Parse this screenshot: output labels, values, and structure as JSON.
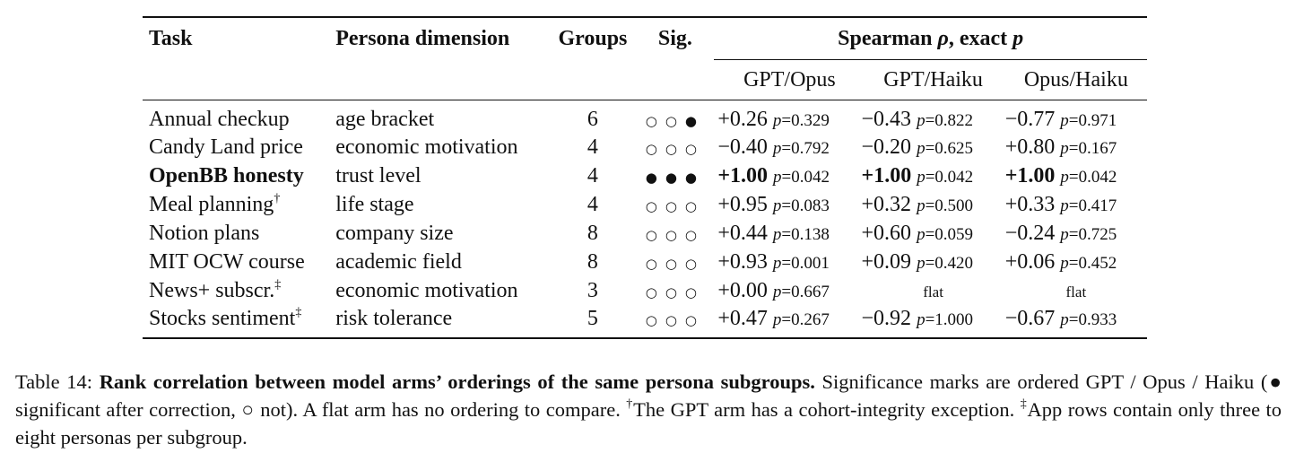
{
  "table": {
    "headers": {
      "task": "Task",
      "dimension": "Persona dimension",
      "groups": "Groups",
      "sig": "Sig.",
      "spearman": "Spearman ρ, exact p",
      "pairs": [
        "GPT/Opus",
        "GPT/Haiku",
        "Opus/Haiku"
      ]
    },
    "rows": [
      {
        "task": "Annual checkup",
        "mark": "",
        "dim": "age bracket",
        "groups": "6",
        "sig": "○○●",
        "bold": false,
        "cells": [
          {
            "rho": "+0.26",
            "p": "=0.329"
          },
          {
            "rho": "−0.43",
            "p": "=0.822"
          },
          {
            "rho": "−0.77",
            "p": "=0.971"
          }
        ]
      },
      {
        "task": "Candy Land price",
        "mark": "",
        "dim": "economic motivation",
        "groups": "4",
        "sig": "○○○",
        "bold": false,
        "cells": [
          {
            "rho": "−0.40",
            "p": "=0.792"
          },
          {
            "rho": "−0.20",
            "p": "=0.625"
          },
          {
            "rho": "+0.80",
            "p": "=0.167"
          }
        ]
      },
      {
        "task": "OpenBB honesty",
        "mark": "",
        "dim": "trust level",
        "groups": "4",
        "sig": "●●●",
        "bold": true,
        "cells": [
          {
            "rho": "+1.00",
            "p": "=0.042"
          },
          {
            "rho": "+1.00",
            "p": "=0.042"
          },
          {
            "rho": "+1.00",
            "p": "=0.042"
          }
        ]
      },
      {
        "task": "Meal planning",
        "mark": "†",
        "dim": "life stage",
        "groups": "4",
        "sig": "○○○",
        "bold": false,
        "cells": [
          {
            "rho": "+0.95",
            "p": "=0.083"
          },
          {
            "rho": "+0.32",
            "p": "=0.500"
          },
          {
            "rho": "+0.33",
            "p": "=0.417"
          }
        ]
      },
      {
        "task": "Notion plans",
        "mark": "",
        "dim": "company size",
        "groups": "8",
        "sig": "○○○",
        "bold": false,
        "cells": [
          {
            "rho": "+0.44",
            "p": "=0.138"
          },
          {
            "rho": "+0.60",
            "p": "=0.059"
          },
          {
            "rho": "−0.24",
            "p": "=0.725"
          }
        ]
      },
      {
        "task": "MIT OCW course",
        "mark": "",
        "dim": "academic field",
        "groups": "8",
        "sig": "○○○",
        "bold": false,
        "cells": [
          {
            "rho": "+0.93",
            "p": "=0.001"
          },
          {
            "rho": "+0.09",
            "p": "=0.420"
          },
          {
            "rho": "+0.06",
            "p": "=0.452"
          }
        ]
      },
      {
        "task": "News+ subscr.",
        "mark": "‡",
        "dim": "economic motivation",
        "groups": "3",
        "sig": "○○○",
        "bold": false,
        "cells": [
          {
            "rho": "+0.00",
            "p": "=0.667"
          },
          {
            "flat": "flat"
          },
          {
            "flat": "flat"
          }
        ]
      },
      {
        "task": "Stocks sentiment",
        "mark": "‡",
        "dim": "risk tolerance",
        "groups": "5",
        "sig": "○○○",
        "bold": false,
        "cells": [
          {
            "rho": "+0.47",
            "p": "=0.267"
          },
          {
            "rho": "−0.92",
            "p": "=1.000"
          },
          {
            "rho": "−0.67",
            "p": "=0.933"
          }
        ]
      }
    ]
  },
  "caption": {
    "label": "Table 14:",
    "title": "Rank correlation between model arms’ orderings of the same persona subgroups.",
    "text1": "Significance marks are ordered GPT / Opus / Haiku (● significant after correction, ○ not). A flat arm has no ordering to compare.",
    "dagger": "†",
    "text2": "The GPT arm has a cohort-integrity exception.",
    "ddagger": "‡",
    "text3": "App rows contain only three to eight personas per subgroup."
  }
}
